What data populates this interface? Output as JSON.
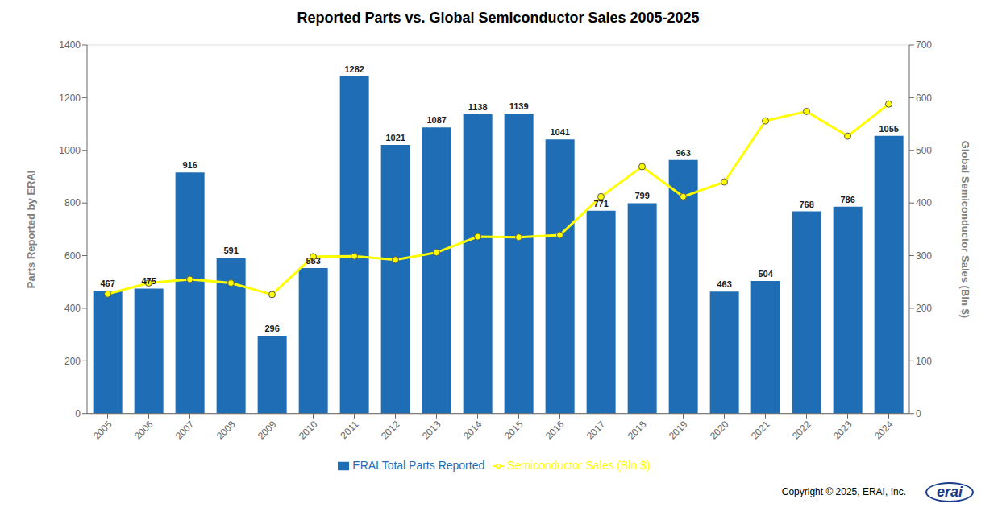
{
  "chart_data": {
    "type": "bar",
    "title": "Reported Parts vs. Global Semiconductor Sales 2005-2025",
    "categories": [
      "2005",
      "2006",
      "2007",
      "2008",
      "2009",
      "2010",
      "2011",
      "2012",
      "2013",
      "2014",
      "2015",
      "2016",
      "2017",
      "2018",
      "2019",
      "2020",
      "2021",
      "2022",
      "2023",
      "2024"
    ],
    "series": [
      {
        "name": "ERAI Total Parts Reported",
        "type": "bar",
        "color": "#1F6EB5",
        "data_labels": true,
        "values": [
          467,
          475,
          916,
          591,
          296,
          553,
          1282,
          1021,
          1087,
          1138,
          1139,
          1041,
          771,
          799,
          963,
          463,
          504,
          768,
          786,
          1055
        ]
      },
      {
        "name": "Semiconductor Sales (Bln $)",
        "type": "line",
        "axis": "y2",
        "color": "#FFFF00",
        "marker": "circle",
        "values": [
          227,
          248,
          255,
          248,
          226,
          298,
          299,
          292,
          306,
          336,
          335,
          339,
          412,
          469,
          412,
          440,
          556,
          574,
          527,
          588
        ]
      }
    ],
    "ylabel": "Parts Reported by ERAI",
    "y2label": "Global Semiconductor Sales (Bln $)",
    "ylim": [
      0,
      1400
    ],
    "yticks": [
      0,
      200,
      400,
      600,
      800,
      1000,
      1200,
      1400
    ],
    "y2lim": [
      0,
      700
    ],
    "y2ticks": [
      0,
      100,
      200,
      300,
      400,
      500,
      600,
      700
    ],
    "grid": true,
    "legend": "bottom",
    "annotations": [
      "Copyright © 2025, ERAI, Inc.",
      "erai"
    ]
  }
}
